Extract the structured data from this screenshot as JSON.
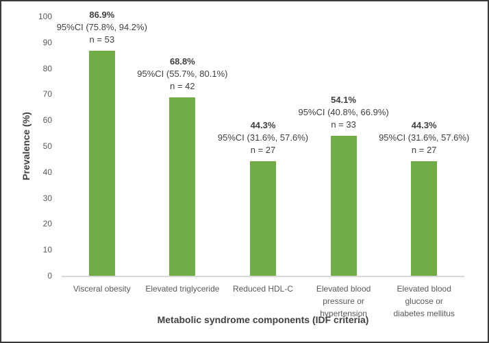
{
  "chart_data": {
    "type": "bar",
    "title": "",
    "xlabel": "Metabolic syndrome components (IDF criteria)",
    "ylabel": "Prevalence (%)",
    "ylim": [
      0,
      100
    ],
    "ytick_step": 10,
    "grid": false,
    "legend": false,
    "bar_color": "#70AD47",
    "axis_line_color": "#D9D9D9",
    "label_text_color": "#404040",
    "tick_text_color": "#595959",
    "categories": [
      "Visceral obesity",
      "Elevated triglyceride",
      "Reduced HDL-C",
      "Elevated blood\npressure or\nhypertension",
      "Elevated blood\nglucose or\ndiabetes mellitus"
    ],
    "values": [
      86.9,
      68.8,
      44.3,
      54.1,
      44.3
    ],
    "annotations": [
      {
        "pct": "86.9%",
        "ci": "95%CI (75.8%, 94.2%)",
        "n": "n = 53"
      },
      {
        "pct": "68.8%",
        "ci": "95%CI (55.7%, 80.1%)",
        "n": "n = 42"
      },
      {
        "pct": "44.3%",
        "ci": "95%CI (31.6%, 57.6%)",
        "n": "n = 27"
      },
      {
        "pct": "54.1%",
        "ci": "95%CI (40.8%, 66.9%)",
        "n": "n = 33"
      },
      {
        "pct": "44.3%",
        "ci": "95%CI (31.6%, 57.6%)",
        "n": "n = 27"
      }
    ]
  }
}
